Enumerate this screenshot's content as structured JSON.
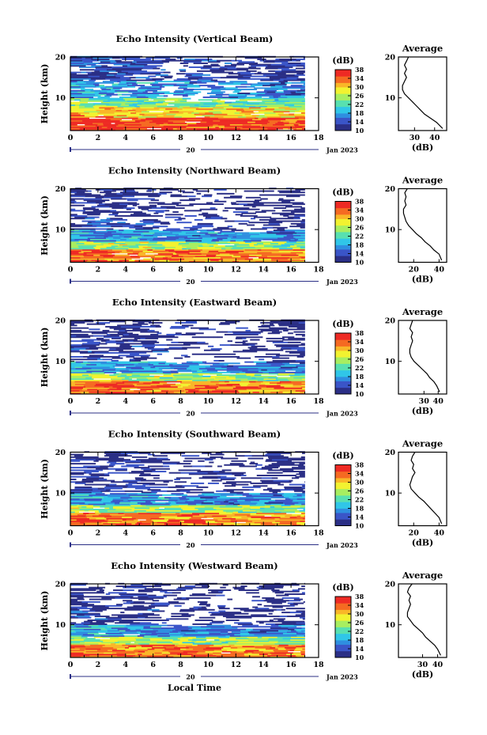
{
  "figure": {
    "xlabel": "Local Time",
    "date_label": "Jan 2023",
    "day_label": "20",
    "colorbar_unit": "(dB)",
    "average_title": "Average",
    "average_xlabel": "(dB)",
    "colormap": [
      "#2b2f86",
      "#3a55c8",
      "#2f8fe0",
      "#30c6e8",
      "#58e0b0",
      "#a8ee60",
      "#f2f230",
      "#f9b628",
      "#f56a22",
      "#ee2a24"
    ]
  },
  "chart_data": [
    {
      "type": "heatmap",
      "title": "Echo Intensity (Vertical Beam)",
      "xlabel": "Local Time",
      "ylabel": "Height (km)",
      "xlim": [
        0,
        18
      ],
      "ylim": [
        2,
        20
      ],
      "xticks": [
        0,
        2,
        4,
        6,
        8,
        10,
        12,
        14,
        16,
        18
      ],
      "yticks": [
        10,
        20
      ],
      "data_time_range": [
        0,
        17
      ],
      "colorbar": {
        "label": "(dB)",
        "min": 10,
        "max": 38,
        "ticks": [
          10,
          14,
          18,
          22,
          26,
          30,
          34,
          38
        ]
      },
      "layers": [
        {
          "from_km": 2,
          "to_km": 5,
          "db": 37
        },
        {
          "from_km": 5,
          "to_km": 7.5,
          "db": 31
        },
        {
          "from_km": 7.5,
          "to_km": 10,
          "db": 24
        },
        {
          "from_km": 10,
          "to_km": 14,
          "db": 18
        },
        {
          "from_km": 14,
          "to_km": 20,
          "db": 13
        }
      ],
      "average_profile": {
        "title": "Average",
        "xlabel": "(dB)",
        "xticks": [
          30,
          40
        ],
        "xlim": [
          22,
          46
        ],
        "yticks": [
          10,
          20
        ],
        "height_km": [
          2.5,
          4,
          5,
          6,
          7,
          8,
          9,
          10,
          11,
          12,
          13,
          14,
          15,
          16,
          17,
          18,
          19,
          20
        ],
        "db": [
          44,
          41,
          38,
          35,
          33,
          31,
          29,
          27,
          25,
          24,
          24,
          25,
          26,
          25,
          26,
          25,
          26,
          27
        ]
      }
    },
    {
      "type": "heatmap",
      "title": "Echo Intensity (Northward Beam)",
      "xlabel": "Local Time",
      "ylabel": "Height (km)",
      "xlim": [
        0,
        18
      ],
      "ylim": [
        2,
        20
      ],
      "xticks": [
        0,
        2,
        4,
        6,
        8,
        10,
        12,
        14,
        16,
        18
      ],
      "yticks": [
        10,
        20
      ],
      "data_time_range": [
        0,
        17
      ],
      "colorbar": {
        "label": "(dB)",
        "min": 10,
        "max": 38,
        "ticks": [
          10,
          14,
          18,
          22,
          26,
          30,
          34,
          38
        ]
      },
      "layers": [
        {
          "from_km": 2,
          "to_km": 5,
          "db": 34
        },
        {
          "from_km": 5,
          "to_km": 7,
          "db": 26
        },
        {
          "from_km": 7,
          "to_km": 10,
          "db": 18
        },
        {
          "from_km": 10,
          "to_km": 14,
          "db": 12
        },
        {
          "from_km": 14,
          "to_km": 20,
          "db": 11
        }
      ],
      "average_profile": {
        "title": "Average",
        "xlabel": "(dB)",
        "xticks": [
          20,
          40
        ],
        "xlim": [
          8,
          46
        ],
        "yticks": [
          10,
          20
        ],
        "height_km": [
          2.5,
          4,
          5,
          6,
          7,
          8,
          9,
          10,
          11,
          12,
          13,
          14,
          15,
          16,
          17,
          18,
          19,
          20
        ],
        "db": [
          42,
          40,
          36,
          33,
          29,
          26,
          22,
          19,
          16,
          14,
          13,
          12,
          12,
          14,
          13,
          14,
          13,
          15
        ]
      }
    },
    {
      "type": "heatmap",
      "title": "Echo Intensity (Eastward Beam)",
      "xlabel": "Local Time",
      "ylabel": "Height (km)",
      "xlim": [
        0,
        18
      ],
      "ylim": [
        2,
        20
      ],
      "xticks": [
        0,
        2,
        4,
        6,
        8,
        10,
        12,
        14,
        16,
        18
      ],
      "yticks": [
        10,
        20
      ],
      "data_time_range": [
        0,
        17
      ],
      "colorbar": {
        "label": "(dB)",
        "min": 10,
        "max": 38,
        "ticks": [
          10,
          14,
          18,
          22,
          26,
          30,
          34,
          38
        ]
      },
      "layers": [
        {
          "from_km": 2,
          "to_km": 5,
          "db": 34
        },
        {
          "from_km": 5,
          "to_km": 7,
          "db": 26
        },
        {
          "from_km": 7,
          "to_km": 10,
          "db": 18
        },
        {
          "from_km": 10,
          "to_km": 14,
          "db": 12
        },
        {
          "from_km": 14,
          "to_km": 20,
          "db": 11
        }
      ],
      "average_profile": {
        "title": "Average",
        "xlabel": "(dB)",
        "xticks": [
          30,
          40
        ],
        "xlim": [
          12,
          46
        ],
        "yticks": [
          10,
          20
        ],
        "height_km": [
          2.5,
          4,
          5,
          6,
          7,
          8,
          9,
          10,
          11,
          12,
          13,
          14,
          15,
          16,
          17,
          18,
          19,
          20
        ],
        "db": [
          41,
          39,
          37,
          34,
          32,
          29,
          26,
          23,
          21,
          20,
          20,
          21,
          22,
          21,
          22,
          20,
          21,
          22
        ]
      }
    },
    {
      "type": "heatmap",
      "title": "Echo Intensity (Southward Beam)",
      "xlabel": "Local Time",
      "ylabel": "Height (km)",
      "xlim": [
        0,
        18
      ],
      "ylim": [
        2,
        20
      ],
      "xticks": [
        0,
        2,
        4,
        6,
        8,
        10,
        12,
        14,
        16,
        18
      ],
      "yticks": [
        10,
        20
      ],
      "data_time_range": [
        0,
        17
      ],
      "colorbar": {
        "label": "(dB)",
        "min": 10,
        "max": 38,
        "ticks": [
          10,
          14,
          18,
          22,
          26,
          30,
          34,
          38
        ]
      },
      "layers": [
        {
          "from_km": 2,
          "to_km": 5,
          "db": 34
        },
        {
          "from_km": 5,
          "to_km": 7,
          "db": 26
        },
        {
          "from_km": 7,
          "to_km": 10,
          "db": 18
        },
        {
          "from_km": 10,
          "to_km": 14,
          "db": 12
        },
        {
          "from_km": 14,
          "to_km": 20,
          "db": 11
        }
      ],
      "average_profile": {
        "title": "Average",
        "xlabel": "(dB)",
        "xticks": [
          20,
          40
        ],
        "xlim": [
          8,
          46
        ],
        "yticks": [
          10,
          20
        ],
        "height_km": [
          2.5,
          4,
          5,
          6,
          7,
          8,
          9,
          10,
          11,
          12,
          13,
          14,
          15,
          16,
          17,
          18,
          19,
          20
        ],
        "db": [
          42,
          40,
          37,
          34,
          31,
          28,
          24,
          21,
          18,
          17,
          18,
          19,
          21,
          19,
          20,
          18,
          19,
          21
        ]
      }
    },
    {
      "type": "heatmap",
      "title": "Echo Intensity (Westward Beam)",
      "xlabel": "Local Time",
      "ylabel": "Height (km)",
      "xlim": [
        0,
        18
      ],
      "ylim": [
        2,
        20
      ],
      "xticks": [
        0,
        2,
        4,
        6,
        8,
        10,
        12,
        14,
        16,
        18
      ],
      "yticks": [
        10,
        20
      ],
      "data_time_range": [
        0,
        17
      ],
      "colorbar": {
        "label": "(dB)",
        "min": 10,
        "max": 38,
        "ticks": [
          10,
          14,
          18,
          22,
          26,
          30,
          34,
          38
        ]
      },
      "layers": [
        {
          "from_km": 2,
          "to_km": 5,
          "db": 34
        },
        {
          "from_km": 5,
          "to_km": 7,
          "db": 26
        },
        {
          "from_km": 7,
          "to_km": 10,
          "db": 18
        },
        {
          "from_km": 10,
          "to_km": 14,
          "db": 12
        },
        {
          "from_km": 14,
          "to_km": 20,
          "db": 11
        }
      ],
      "average_profile": {
        "title": "Average",
        "xlabel": "(dB)",
        "xticks": [
          30,
          40
        ],
        "xlim": [
          14,
          46
        ],
        "yticks": [
          10,
          20
        ],
        "height_km": [
          2.5,
          4,
          5,
          6,
          7,
          8,
          9,
          10,
          11,
          12,
          13,
          14,
          15,
          16,
          17,
          18,
          19,
          20
        ],
        "db": [
          42,
          40,
          38,
          35,
          32,
          30,
          27,
          24,
          22,
          20,
          20,
          21,
          22,
          21,
          22,
          20,
          21,
          23
        ]
      }
    }
  ]
}
